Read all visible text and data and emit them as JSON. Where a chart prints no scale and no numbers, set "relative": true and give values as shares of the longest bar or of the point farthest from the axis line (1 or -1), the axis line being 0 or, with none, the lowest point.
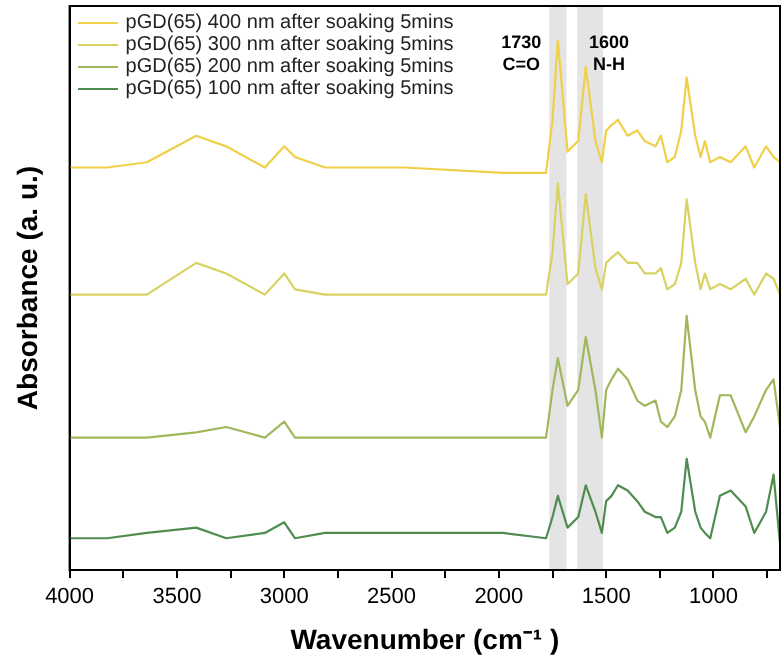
{
  "chart_data": {
    "type": "line",
    "relative": true,
    "xlabel": "Wavenumber (cm⁻¹ )",
    "ylabel": "Absorbance (a. u.)",
    "xlim": [
      4000,
      690
    ],
    "xticks": [
      4000,
      {
        "value": 3750,
        "label": null
      },
      3500,
      {
        "value": 3250,
        "label": null
      },
      3000,
      {
        "value": 2750,
        "label": null
      },
      2500,
      {
        "value": 2250,
        "label": null
      },
      2000,
      {
        "value": 1750,
        "label": null
      },
      1500,
      {
        "value": 1250,
        "label": null
      },
      1000,
      {
        "value": 750,
        "label": null
      }
    ],
    "x": [
      4000,
      3825,
      3640,
      3410,
      3270,
      3090,
      3000,
      2950,
      2810,
      2440,
      1980,
      1780,
      1750,
      1725,
      1680,
      1630,
      1595,
      1550,
      1520,
      1500,
      1475,
      1445,
      1400,
      1355,
      1320,
      1270,
      1245,
      1215,
      1180,
      1150,
      1125,
      1085,
      1060,
      1040,
      1015,
      970,
      920,
      850,
      810,
      755,
      720,
      690
    ],
    "series": [
      {
        "name": "pGD(65) 400 nm after soaking 5mins",
        "color": "#f0d048",
        "values": [
          0.76,
          0.76,
          0.77,
          0.82,
          0.8,
          0.76,
          0.8,
          0.78,
          0.76,
          0.76,
          0.75,
          0.75,
          0.85,
          1.0,
          0.79,
          0.81,
          0.95,
          0.81,
          0.77,
          0.83,
          0.84,
          0.85,
          0.82,
          0.83,
          0.81,
          0.8,
          0.82,
          0.77,
          0.78,
          0.83,
          0.93,
          0.82,
          0.78,
          0.81,
          0.77,
          0.78,
          0.77,
          0.8,
          0.76,
          0.8,
          0.78,
          0.77
        ]
      },
      {
        "name": "pGD(65) 300 nm after soaking 5mins",
        "color": "#d8d262",
        "values": [
          0.52,
          0.52,
          0.52,
          0.58,
          0.56,
          0.52,
          0.56,
          0.53,
          0.52,
          0.52,
          0.52,
          0.52,
          0.6,
          0.73,
          0.54,
          0.56,
          0.71,
          0.57,
          0.53,
          0.58,
          0.59,
          0.6,
          0.58,
          0.58,
          0.56,
          0.56,
          0.57,
          0.53,
          0.54,
          0.58,
          0.7,
          0.58,
          0.53,
          0.56,
          0.53,
          0.54,
          0.53,
          0.55,
          0.52,
          0.56,
          0.55,
          0.52
        ]
      },
      {
        "name": "pGD(65) 200 nm after soaking 5mins",
        "color": "#a0b85c",
        "values": [
          0.25,
          0.25,
          0.25,
          0.26,
          0.27,
          0.25,
          0.28,
          0.25,
          0.25,
          0.25,
          0.25,
          0.25,
          0.34,
          0.4,
          0.31,
          0.34,
          0.44,
          0.34,
          0.25,
          0.34,
          0.36,
          0.38,
          0.36,
          0.32,
          0.31,
          0.32,
          0.28,
          0.27,
          0.29,
          0.34,
          0.48,
          0.34,
          0.29,
          0.28,
          0.25,
          0.33,
          0.33,
          0.26,
          0.29,
          0.34,
          0.36,
          0.27
        ]
      },
      {
        "name": "pGD(65) 100 nm after soaking 5mins",
        "color": "#4f8c50",
        "values": [
          0.06,
          0.06,
          0.07,
          0.08,
          0.06,
          0.07,
          0.09,
          0.06,
          0.07,
          0.07,
          0.07,
          0.06,
          0.1,
          0.14,
          0.08,
          0.1,
          0.16,
          0.11,
          0.07,
          0.13,
          0.14,
          0.16,
          0.15,
          0.13,
          0.11,
          0.1,
          0.1,
          0.07,
          0.08,
          0.11,
          0.21,
          0.11,
          0.08,
          0.07,
          0.06,
          0.14,
          0.15,
          0.12,
          0.07,
          0.11,
          0.18,
          0.05
        ]
      }
    ],
    "bands": [
      {
        "axis": "x",
        "from": 1765,
        "to": 1685,
        "label": "1730\nC=O",
        "color": "#e4e4e4"
      },
      {
        "axis": "x",
        "from": 1635,
        "to": 1515,
        "label": "1600\nN-H",
        "color": "#e4e4e4"
      }
    ],
    "legend": "top left",
    "grid": false
  }
}
